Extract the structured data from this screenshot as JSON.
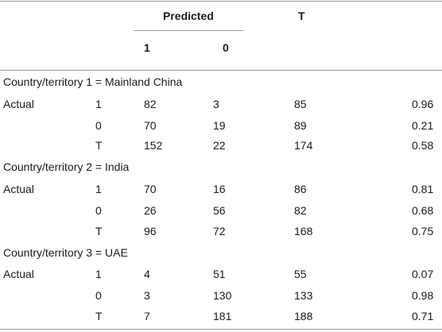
{
  "header": {
    "predicted": "Predicted",
    "total": "T",
    "col_1": "1",
    "col_0": "0"
  },
  "groups": [
    {
      "title": "Country/territory 1 = Mainland China",
      "rows": [
        {
          "label": "Actual",
          "class": "1",
          "p1": "82",
          "p0": "3",
          "t": "85",
          "rate": "0.96"
        },
        {
          "label": "",
          "class": "0",
          "p1": "70",
          "p0": "19",
          "t": "89",
          "rate": "0.21"
        },
        {
          "label": "",
          "class": "T",
          "p1": "152",
          "p0": "22",
          "t": "174",
          "rate": "0.58"
        }
      ]
    },
    {
      "title": "Country/territory 2 = India",
      "rows": [
        {
          "label": "Actual",
          "class": "1",
          "p1": "70",
          "p0": "16",
          "t": "86",
          "rate": "0.81"
        },
        {
          "label": "",
          "class": "0",
          "p1": "26",
          "p0": "56",
          "t": "82",
          "rate": "0.68"
        },
        {
          "label": "",
          "class": "T",
          "p1": "96",
          "p0": "72",
          "t": "168",
          "rate": "0.75"
        }
      ]
    },
    {
      "title": "Country/territory 3 = UAE",
      "rows": [
        {
          "label": "Actual",
          "class": "1",
          "p1": "4",
          "p0": "51",
          "t": "55",
          "rate": "0.07"
        },
        {
          "label": "",
          "class": "0",
          "p1": "3",
          "p0": "130",
          "t": "133",
          "rate": "0.98"
        },
        {
          "label": "",
          "class": "T",
          "p1": "7",
          "p0": "181",
          "t": "188",
          "rate": "0.71"
        }
      ]
    }
  ]
}
